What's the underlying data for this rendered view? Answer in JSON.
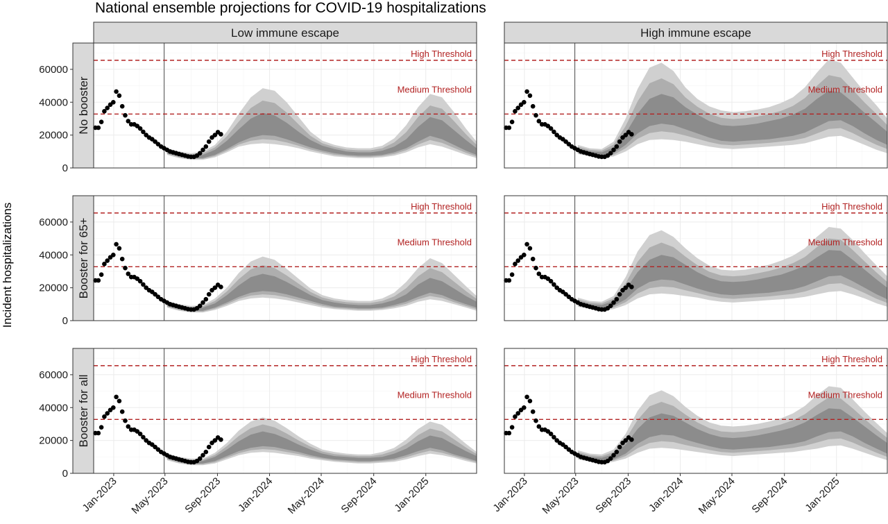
{
  "chart_data": {
    "type": "area",
    "title": "National ensemble projections for COVID-19 hospitalizations",
    "ylabel": "Incident hospitalizations",
    "xlabel": "",
    "ylim": [
      0,
      76000
    ],
    "yticks": [
      0,
      20000,
      40000,
      60000
    ],
    "ytick_labels": [
      "0",
      "20000",
      "40000",
      "60000"
    ],
    "xlim": [
      "2022-11-15",
      "2025-04-30"
    ],
    "xticks": [
      "2023-01-01",
      "2023-05-01",
      "2023-09-01",
      "2024-01-01",
      "2024-05-01",
      "2024-09-01",
      "2025-01-01"
    ],
    "xtick_labels": [
      "Jan-2023",
      "May-2023",
      "Sep-2023",
      "Jan-2024",
      "May-2024",
      "Sep-2024",
      "Jan-2025"
    ],
    "projection_start": "2023-04-29",
    "grid": true,
    "columns": [
      "Low immune escape",
      "High immune escape"
    ],
    "rows": [
      "No booster",
      "Booster for 65+",
      "Booster for all"
    ],
    "thresholds": [
      {
        "name": "High Threshold",
        "value": 65500,
        "color": "#b22222"
      },
      {
        "name": "Medium Threshold",
        "value": 32800,
        "color": "#b22222"
      }
    ],
    "colors": {
      "band_outer": "#d0d0d0",
      "band_mid": "#aeaeae",
      "band_inner": "#8c8c8c",
      "observed": "#000000"
    },
    "observed": {
      "x": [
        "2022-11-19",
        "2022-11-26",
        "2022-12-03",
        "2022-12-10",
        "2022-12-17",
        "2022-12-24",
        "2022-12-31",
        "2023-01-07",
        "2023-01-14",
        "2023-01-21",
        "2023-01-28",
        "2023-02-04",
        "2023-02-11",
        "2023-02-18",
        "2023-02-25",
        "2023-03-04",
        "2023-03-11",
        "2023-03-18",
        "2023-03-25",
        "2023-04-01",
        "2023-04-08",
        "2023-04-15",
        "2023-04-22",
        "2023-04-29",
        "2023-05-06",
        "2023-05-13",
        "2023-05-20",
        "2023-05-27",
        "2023-06-03",
        "2023-06-10",
        "2023-06-17",
        "2023-06-24",
        "2023-07-01",
        "2023-07-08",
        "2023-07-15",
        "2023-07-22",
        "2023-07-29",
        "2023-08-05",
        "2023-08-12",
        "2023-08-19",
        "2023-08-26",
        "2023-09-02",
        "2023-09-09"
      ],
      "y": [
        24500,
        24500,
        28000,
        34500,
        36500,
        38500,
        40000,
        46500,
        44000,
        37500,
        32000,
        28500,
        26500,
        26500,
        25500,
        24000,
        22000,
        20000,
        18500,
        17500,
        16000,
        14500,
        13000,
        12000,
        11000,
        10000,
        9500,
        9000,
        8500,
        8000,
        7500,
        7000,
        6800,
        6800,
        7500,
        9000,
        11000,
        13000,
        16000,
        18500,
        20000,
        21800,
        20500
      ]
    },
    "projections": [
      {
        "row": "No booster",
        "column": "Low immune escape",
        "x": [
          "2023-05-06",
          "2023-06-03",
          "2023-07-01",
          "2023-07-29",
          "2023-08-26",
          "2023-09-23",
          "2023-10-21",
          "2023-11-18",
          "2023-12-16",
          "2024-01-13",
          "2024-02-10",
          "2024-03-09",
          "2024-04-06",
          "2024-05-04",
          "2024-06-01",
          "2024-06-29",
          "2024-07-27",
          "2024-08-24",
          "2024-09-21",
          "2024-10-19",
          "2024-11-16",
          "2024-12-14",
          "2025-01-11",
          "2025-02-08",
          "2025-03-08",
          "2025-04-05",
          "2025-04-30"
        ],
        "q05": [
          8000,
          6000,
          5000,
          5000,
          6500,
          9500,
          13000,
          14500,
          15000,
          14500,
          13500,
          12000,
          10000,
          8500,
          7000,
          6500,
          6000,
          6000,
          6500,
          7500,
          9500,
          12500,
          14500,
          13000,
          10500,
          8000,
          6000
        ],
        "q25": [
          9000,
          7000,
          6000,
          6000,
          8000,
          11500,
          15500,
          18500,
          20000,
          19500,
          17500,
          15000,
          12500,
          10500,
          9000,
          8000,
          7500,
          7500,
          8000,
          9500,
          12000,
          16000,
          19500,
          17500,
          14000,
          10500,
          8000
        ],
        "q75": [
          10500,
          8500,
          7500,
          8000,
          11000,
          16500,
          23500,
          30000,
          33500,
          32000,
          27500,
          22000,
          17000,
          13500,
          11500,
          10000,
          9500,
          9500,
          10500,
          13000,
          17500,
          25000,
          31000,
          29000,
          23000,
          17000,
          12000
        ],
        "q95": [
          12000,
          10000,
          9000,
          10000,
          14000,
          22000,
          33000,
          43000,
          48500,
          47000,
          40000,
          31000,
          22000,
          16500,
          14000,
          12500,
          12000,
          12000,
          13500,
          18000,
          26000,
          37000,
          45000,
          43000,
          34000,
          24000,
          16000
        ]
      },
      {
        "row": "No booster",
        "column": "High immune escape",
        "x": [
          "2023-05-06",
          "2023-06-03",
          "2023-07-01",
          "2023-07-29",
          "2023-08-26",
          "2023-09-23",
          "2023-10-21",
          "2023-11-18",
          "2023-12-16",
          "2024-01-13",
          "2024-02-10",
          "2024-03-09",
          "2024-04-06",
          "2024-05-04",
          "2024-06-01",
          "2024-06-29",
          "2024-07-27",
          "2024-08-24",
          "2024-09-21",
          "2024-10-19",
          "2024-11-16",
          "2024-12-14",
          "2025-01-11",
          "2025-02-08",
          "2025-03-08",
          "2025-04-05",
          "2025-04-30"
        ],
        "q05": [
          8500,
          7000,
          6000,
          7000,
          10000,
          14500,
          17000,
          17500,
          17000,
          16000,
          14500,
          13000,
          12000,
          11500,
          12000,
          12500,
          13000,
          13500,
          14000,
          15000,
          17000,
          19000,
          19500,
          17000,
          14000,
          11000,
          9000
        ],
        "q25": [
          10000,
          8500,
          7500,
          9000,
          14000,
          21000,
          25500,
          27000,
          26000,
          23500,
          21000,
          18500,
          16500,
          16000,
          16500,
          17000,
          17500,
          18500,
          19500,
          21500,
          25000,
          28500,
          29000,
          25500,
          21000,
          17000,
          14000
        ],
        "q75": [
          12000,
          10000,
          9500,
          12500,
          21000,
          33000,
          42000,
          45000,
          43000,
          37000,
          32500,
          28500,
          26000,
          25500,
          26000,
          27000,
          28500,
          30000,
          32500,
          36000,
          42000,
          47000,
          46000,
          40000,
          33500,
          27500,
          22000
        ],
        "q95": [
          14000,
          12000,
          11500,
          16000,
          30000,
          48000,
          61000,
          64000,
          59000,
          49000,
          42000,
          37500,
          35000,
          34000,
          34500,
          35500,
          37000,
          39500,
          43000,
          49000,
          58000,
          66000,
          64000,
          55000,
          46000,
          38000,
          30000
        ]
      },
      {
        "row": "Booster for 65+",
        "column": "Low immune escape",
        "x": [
          "2023-05-06",
          "2023-06-03",
          "2023-07-01",
          "2023-07-29",
          "2023-08-26",
          "2023-09-23",
          "2023-10-21",
          "2023-11-18",
          "2023-12-16",
          "2024-01-13",
          "2024-02-10",
          "2024-03-09",
          "2024-04-06",
          "2024-05-04",
          "2024-06-01",
          "2024-06-29",
          "2024-07-27",
          "2024-08-24",
          "2024-09-21",
          "2024-10-19",
          "2024-11-16",
          "2024-12-14",
          "2025-01-11",
          "2025-02-08",
          "2025-03-08",
          "2025-04-05",
          "2025-04-30"
        ],
        "q05": [
          8000,
          6000,
          5000,
          5000,
          6500,
          9000,
          12000,
          13500,
          14000,
          13500,
          12500,
          11000,
          9500,
          8000,
          7000,
          6500,
          6000,
          6000,
          6500,
          7500,
          9000,
          11500,
          13000,
          12000,
          10000,
          8000,
          6000
        ],
        "q25": [
          9000,
          7000,
          6000,
          6000,
          8000,
          11000,
          14500,
          17000,
          18000,
          17500,
          16000,
          14000,
          12000,
          10000,
          8500,
          8000,
          7500,
          7500,
          8000,
          9500,
          11500,
          14500,
          17000,
          15500,
          12500,
          10000,
          8000
        ],
        "q75": [
          10500,
          8500,
          7500,
          8000,
          10500,
          15500,
          21500,
          26500,
          28500,
          27000,
          23500,
          19500,
          15500,
          12500,
          11000,
          10000,
          9500,
          9500,
          10500,
          12500,
          16000,
          22000,
          26000,
          24000,
          19500,
          15000,
          11500
        ],
        "q95": [
          12000,
          10000,
          9000,
          9500,
          13500,
          20000,
          29000,
          36000,
          39000,
          37000,
          31500,
          25500,
          19500,
          15500,
          13500,
          12500,
          12000,
          12000,
          13500,
          17000,
          23500,
          32000,
          38000,
          35000,
          28000,
          21000,
          15000
        ]
      },
      {
        "row": "Booster for 65+",
        "column": "High immune escape",
        "x": [
          "2023-05-06",
          "2023-06-03",
          "2023-07-01",
          "2023-07-29",
          "2023-08-26",
          "2023-09-23",
          "2023-10-21",
          "2023-11-18",
          "2023-12-16",
          "2024-01-13",
          "2024-02-10",
          "2024-03-09",
          "2024-04-06",
          "2024-05-04",
          "2024-06-01",
          "2024-06-29",
          "2024-07-27",
          "2024-08-24",
          "2024-09-21",
          "2024-10-19",
          "2024-11-16",
          "2024-12-14",
          "2025-01-11",
          "2025-02-08",
          "2025-03-08",
          "2025-04-05",
          "2025-04-30"
        ],
        "q05": [
          8500,
          7000,
          6000,
          7000,
          9500,
          13500,
          16000,
          16500,
          16000,
          15000,
          14000,
          12500,
          11500,
          11000,
          11500,
          12000,
          12500,
          13000,
          13500,
          14500,
          16000,
          17500,
          18000,
          16000,
          13500,
          10500,
          8500
        ],
        "q25": [
          10000,
          8500,
          7500,
          9000,
          13000,
          19500,
          23500,
          25000,
          24500,
          22000,
          19500,
          17500,
          16000,
          15500,
          16000,
          16500,
          17000,
          18000,
          19000,
          21000,
          24000,
          27000,
          27500,
          24000,
          20000,
          16000,
          13000
        ],
        "q75": [
          12000,
          10000,
          9500,
          12000,
          19000,
          29500,
          37000,
          40000,
          38500,
          34000,
          29500,
          26000,
          24000,
          23500,
          24000,
          25000,
          26500,
          28000,
          30500,
          33500,
          38500,
          43000,
          42500,
          37000,
          31000,
          25000,
          20000
        ],
        "q95": [
          14000,
          12000,
          11500,
          15000,
          26500,
          42000,
          52000,
          55000,
          51000,
          44000,
          38000,
          33500,
          31000,
          30500,
          31000,
          32500,
          34000,
          36500,
          39500,
          44000,
          51000,
          57000,
          56000,
          49000,
          41000,
          33500,
          27000
        ]
      },
      {
        "row": "Booster for all",
        "column": "Low immune escape",
        "x": [
          "2023-05-06",
          "2023-06-03",
          "2023-07-01",
          "2023-07-29",
          "2023-08-26",
          "2023-09-23",
          "2023-10-21",
          "2023-11-18",
          "2023-12-16",
          "2024-01-13",
          "2024-02-10",
          "2024-03-09",
          "2024-04-06",
          "2024-05-04",
          "2024-06-01",
          "2024-06-29",
          "2024-07-27",
          "2024-08-24",
          "2024-09-21",
          "2024-10-19",
          "2024-11-16",
          "2024-12-14",
          "2025-01-11",
          "2025-02-08",
          "2025-03-08",
          "2025-04-05",
          "2025-04-30"
        ],
        "q05": [
          8000,
          6000,
          5000,
          5000,
          6000,
          8500,
          11000,
          12500,
          13000,
          12500,
          11500,
          10500,
          9000,
          8000,
          7000,
          6500,
          6000,
          6000,
          6500,
          7000,
          8500,
          10500,
          12000,
          11000,
          9500,
          7500,
          6000
        ],
        "q25": [
          9000,
          7000,
          6000,
          6000,
          7500,
          10500,
          13500,
          15500,
          16500,
          16000,
          14500,
          13000,
          11000,
          9500,
          8500,
          8000,
          7500,
          7500,
          8000,
          9000,
          11000,
          13500,
          15500,
          14000,
          11500,
          9500,
          7500
        ],
        "q75": [
          10500,
          8500,
          7500,
          7500,
          10000,
          14500,
          19500,
          23500,
          25500,
          24000,
          21000,
          17500,
          14500,
          12000,
          10500,
          10000,
          9500,
          9500,
          10000,
          12000,
          15000,
          19500,
          23000,
          21500,
          17500,
          13500,
          10500
        ],
        "q95": [
          12000,
          10000,
          9000,
          9000,
          12500,
          18500,
          26000,
          31500,
          34000,
          32000,
          27500,
          22500,
          18000,
          14500,
          13000,
          12000,
          11500,
          11500,
          13000,
          15500,
          20500,
          27000,
          31500,
          29500,
          24000,
          18000,
          13000
        ]
      },
      {
        "row": "Booster for all",
        "column": "High immune escape",
        "x": [
          "2023-05-06",
          "2023-06-03",
          "2023-07-01",
          "2023-07-29",
          "2023-08-26",
          "2023-09-23",
          "2023-10-21",
          "2023-11-18",
          "2023-12-16",
          "2024-01-13",
          "2024-02-10",
          "2024-03-09",
          "2024-04-06",
          "2024-05-04",
          "2024-06-01",
          "2024-06-29",
          "2024-07-27",
          "2024-08-24",
          "2024-09-21",
          "2024-10-19",
          "2024-11-16",
          "2024-12-14",
          "2025-01-11",
          "2025-02-08",
          "2025-03-08",
          "2025-04-05",
          "2025-04-30"
        ],
        "q05": [
          8500,
          7000,
          6000,
          7000,
          9000,
          12500,
          15000,
          15500,
          15000,
          14000,
          13000,
          12000,
          11000,
          10500,
          11000,
          11500,
          12000,
          12500,
          13000,
          14000,
          15000,
          16500,
          17000,
          15000,
          12500,
          10000,
          8000
        ],
        "q25": [
          10000,
          8500,
          7500,
          8500,
          12000,
          18000,
          22000,
          23500,
          23000,
          20500,
          18500,
          16500,
          15000,
          14500,
          15000,
          15500,
          16000,
          17000,
          18000,
          19500,
          22500,
          25000,
          25500,
          22500,
          18500,
          15000,
          12000
        ],
        "q75": [
          12000,
          10000,
          9500,
          11500,
          17500,
          27000,
          34000,
          36500,
          35000,
          31000,
          27000,
          24000,
          22000,
          21500,
          22000,
          23000,
          24500,
          26000,
          28000,
          31000,
          35500,
          39500,
          39000,
          34000,
          28500,
          23000,
          18500
        ],
        "q95": [
          14000,
          12000,
          11500,
          14500,
          24000,
          38000,
          47500,
          50500,
          47000,
          40500,
          35000,
          31000,
          29000,
          28500,
          29000,
          30000,
          31500,
          33500,
          36500,
          41000,
          47500,
          53000,
          52000,
          45000,
          37500,
          30500,
          24500
        ]
      }
    ]
  }
}
